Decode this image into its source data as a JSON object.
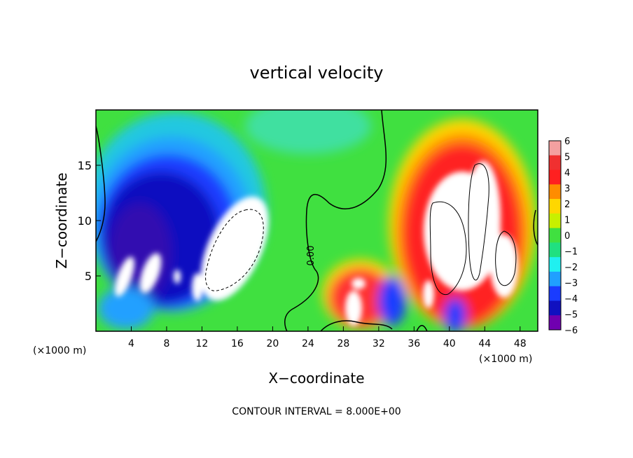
{
  "chart_data": {
    "type": "heatmap",
    "title": "vertical velocity",
    "xlabel": "X−coordinate",
    "ylabel": "Z−coordinate",
    "x_unit_label_left": "(×1000 m)",
    "x_unit_label_right": "(×1000 m)",
    "footer": "CONTOUR INTERVAL = 8.000E+00",
    "contour_label": "0.00",
    "xlim": [
      0,
      50
    ],
    "ylim": [
      0,
      20
    ],
    "x_ticks": [
      4,
      8,
      12,
      16,
      20,
      24,
      28,
      32,
      36,
      40,
      44,
      48
    ],
    "y_ticks": [
      5,
      10,
      15
    ],
    "colorbar": {
      "levels": [
        6,
        5,
        4,
        3,
        2,
        1,
        0,
        -1,
        -2,
        -3,
        -4,
        -5,
        -6
      ],
      "level_labels": [
        "6",
        "5",
        "4",
        "3",
        "2",
        "1",
        "0",
        "−1",
        "−2",
        "−3",
        "−4",
        "−5",
        "−6"
      ],
      "colors": [
        "#f4a0a0",
        "#f03030",
        "#ff2020",
        "#ff8c00",
        "#ffd700",
        "#c8f000",
        "#40e040",
        "#20e080",
        "#20f0f0",
        "#20a0ff",
        "#1a3cff",
        "#1010c0",
        "#7000b0"
      ]
    }
  }
}
